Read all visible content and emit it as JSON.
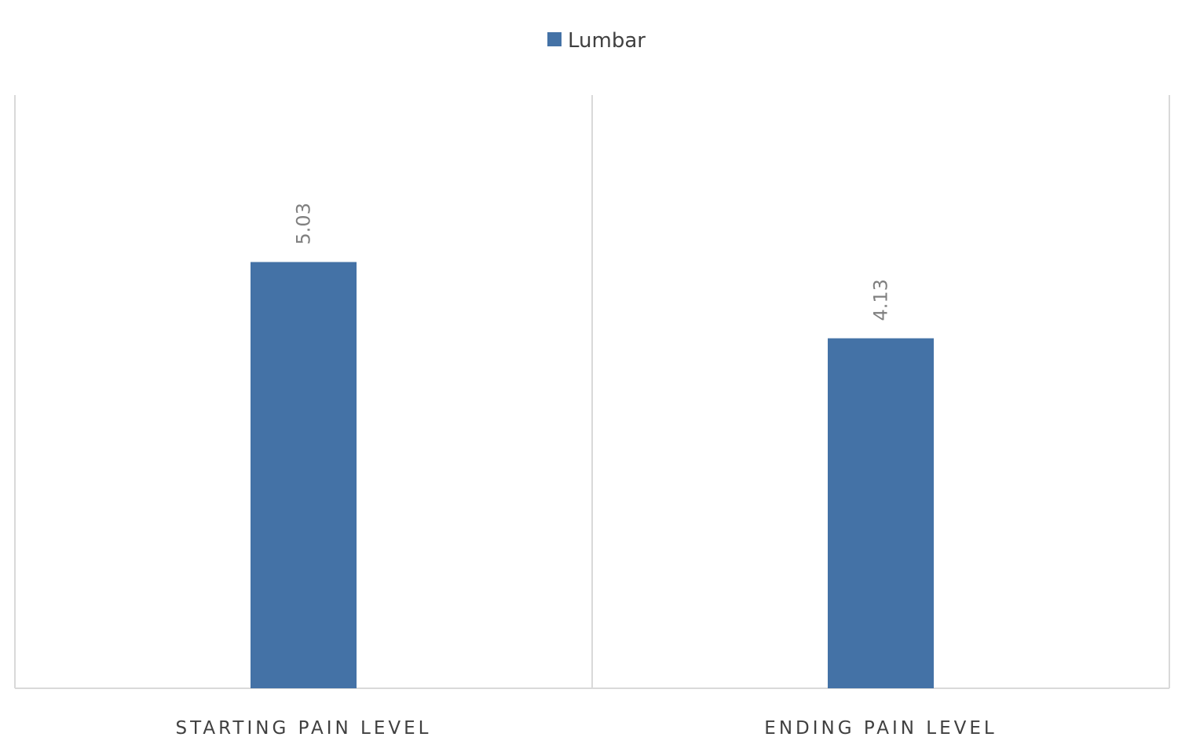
{
  "chart_data": {
    "type": "bar",
    "categories": [
      "STARTING PAIN LEVEL",
      "ENDING PAIN LEVEL"
    ],
    "series": [
      {
        "name": "Lumbar",
        "values": [
          5.03,
          4.13
        ],
        "data_labels": [
          "5.03",
          "4.13"
        ],
        "color": "#4472a6"
      }
    ],
    "ylim": [
      0,
      7
    ],
    "legend": "top-center",
    "grid": "vertical category dividers",
    "data_label_orientation": "vertical"
  },
  "colors": {
    "axis": "#d9d9d9",
    "divider": "#d9d9d9",
    "data_label": "#7f7f7f",
    "text": "#404040"
  }
}
